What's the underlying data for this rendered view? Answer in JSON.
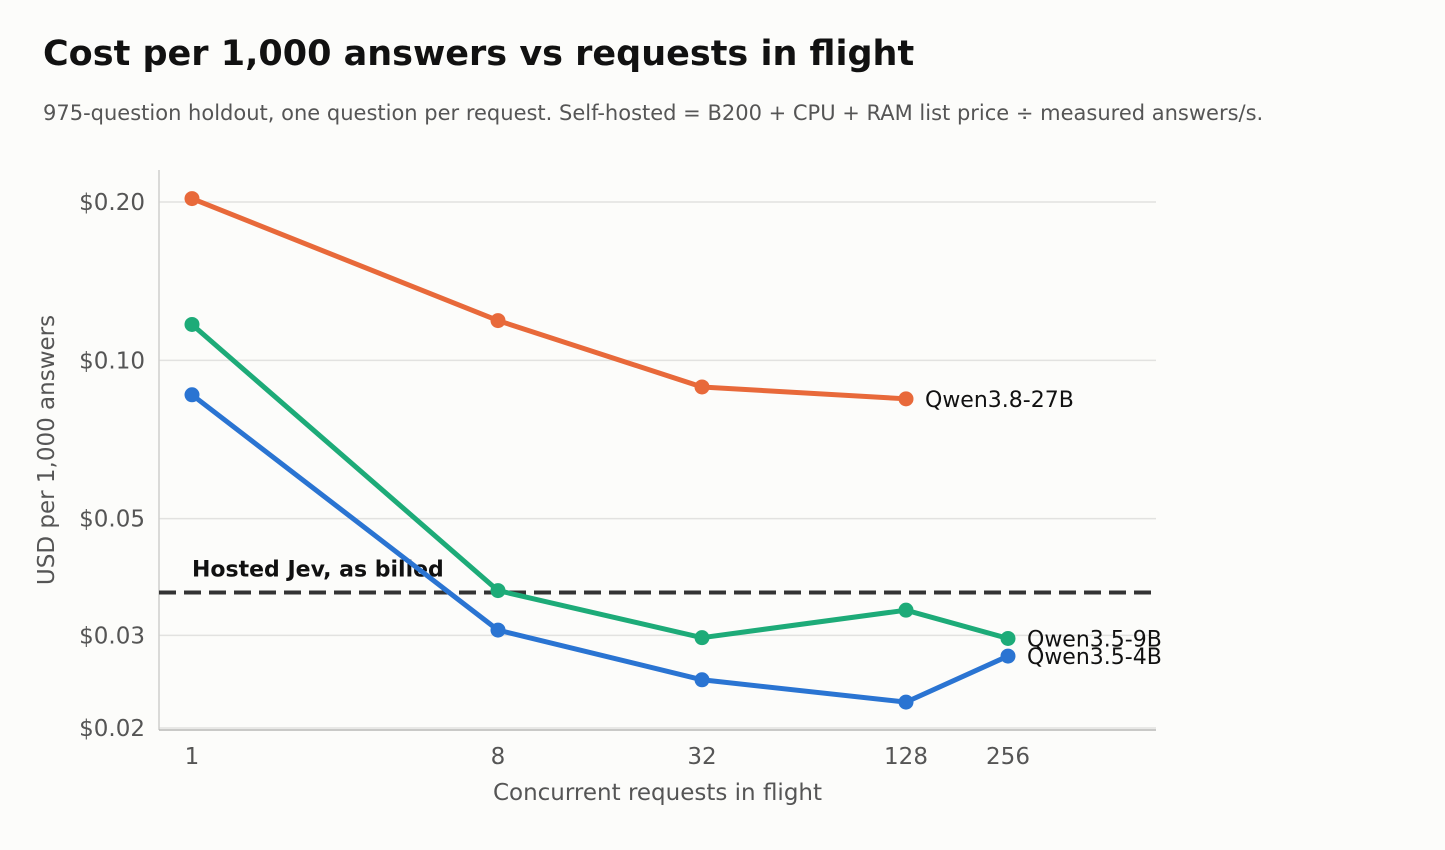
{
  "chart_data": {
    "type": "line",
    "title": "Cost per 1,000 answers vs requests in flight",
    "subtitle": "975-question holdout, one question per request. Self-hosted = B200 + CPU + RAM list price ÷ measured answers/s.",
    "xlabel": "Concurrent requests in flight",
    "ylabel": "USD per 1,000 answers",
    "x_scale": "log2",
    "y_scale": "log",
    "xlim": [
      0.8,
      900
    ],
    "ylim": [
      0.0199,
      0.225
    ],
    "x_ticks": [
      1,
      8,
      32,
      128,
      256
    ],
    "x_tick_labels": [
      "1",
      "8",
      "32",
      "128",
      "256"
    ],
    "y_ticks": [
      0.02,
      0.03,
      0.05,
      0.1,
      0.2
    ],
    "y_tick_labels": [
      "$0.02",
      "$0.03",
      "$0.05",
      "$0.10",
      "$0.20"
    ],
    "grid": "horizontal",
    "series": [
      {
        "name": "Qwen3.8-27B",
        "color": "#e8693a",
        "x": [
          1,
          8,
          32,
          128
        ],
        "y": [
          0.203,
          0.119,
          0.089,
          0.0845
        ]
      },
      {
        "name": "Qwen3.5-9B",
        "color": "#1dab78",
        "x": [
          1,
          8,
          32,
          128,
          256
        ],
        "y": [
          0.117,
          0.0365,
          0.0297,
          0.0335,
          0.0296
        ]
      },
      {
        "name": "Qwen3.5-4B",
        "color": "#2a74d2",
        "x": [
          1,
          8,
          32,
          128,
          256
        ],
        "y": [
          0.086,
          0.0307,
          0.0247,
          0.0224,
          0.0274
        ]
      }
    ],
    "reference_line": {
      "label": "Hosted Jev, as billed",
      "y": 0.0362,
      "color": "#333333",
      "style": "dashed"
    }
  }
}
